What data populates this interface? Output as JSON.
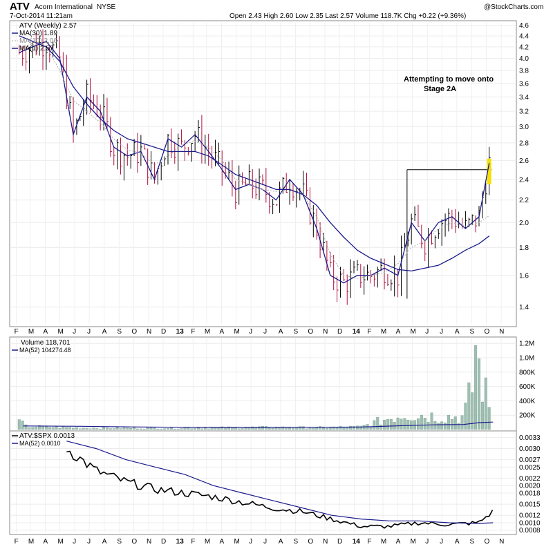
{
  "header": {
    "symbol": "ATV",
    "company": "Acorn International",
    "exchange": "NYSE",
    "datetime": "7-Oct-2014 11:21am",
    "brand": "@StockCharts.com",
    "quote_text": "Open 2.43   High 2.60   Low 2.35   Last 2.57   Volume 118.7K   Chg +0.22 (+9.36%)"
  },
  "price_panel": {
    "legend": [
      "ATV (Weekly) 2.57",
      "MA(30) 1.89",
      "MA(10) 2.06",
      "MA(1) 2.57"
    ],
    "y_ticks": [
      "4.6",
      "4.4",
      "4.2",
      "4.0",
      "3.8",
      "3.6",
      "3.4",
      "3.2",
      "3.0",
      "2.8",
      "2.6",
      "2.4",
      "2.2",
      "2.0",
      "1.8",
      "1.6",
      "1.4"
    ],
    "annotation_line1": "Attempting to move onto",
    "annotation_line2": "Stage 2A"
  },
  "volume_panel": {
    "legend": [
      "Volume 118,701",
      "MA(52) 104274.48"
    ],
    "y_ticks": [
      "1.2M",
      "1.0M",
      "800K",
      "600K",
      "400K",
      "200K"
    ]
  },
  "ratio_panel": {
    "legend": [
      "ATV:$SPX 0.0013",
      "MA(52) 0.0010"
    ],
    "y_ticks": [
      "0.0033",
      "0.0030",
      "0.0027",
      "0.0025",
      "0.0022",
      "0.0020",
      "0.0018",
      "0.0015",
      "0.0012",
      "0.0010",
      "0.0008"
    ]
  },
  "x_axis_labels": [
    "F",
    "M",
    "A",
    "M",
    "J",
    "J",
    "A",
    "S",
    "O",
    "N",
    "D",
    "13",
    "F",
    "M",
    "A",
    "M",
    "J",
    "J",
    "A",
    "S",
    "O",
    "N",
    "D",
    "14",
    "F",
    "M",
    "A",
    "M",
    "J",
    "J",
    "A",
    "S",
    "O",
    "N"
  ],
  "colors": {
    "ma_main": "#1a1a8c",
    "ma10": "#aaaaaa",
    "up_bar": "#000000",
    "down_bar": "#b0103c",
    "volume_bar": "#9fbfb3",
    "highlight": "#f5e000"
  },
  "chart_data": [
    {
      "type": "line",
      "title": "ATV (Weekly)",
      "y_scale": "log",
      "ylim": [
        1.3,
        4.6
      ],
      "x": [
        "2012-02-07",
        "2012-03-06",
        "2012-04-03",
        "2012-05-01",
        "2012-05-29",
        "2012-06-26",
        "2012-07-24",
        "2012-08-21",
        "2012-09-18",
        "2012-10-16",
        "2012-11-13",
        "2012-12-11",
        "2013-01-08",
        "2013-02-05",
        "2013-03-05",
        "2013-04-02",
        "2013-04-30",
        "2013-05-28",
        "2013-06-25",
        "2013-07-23",
        "2013-08-20",
        "2013-09-17",
        "2013-10-15",
        "2013-11-12",
        "2013-12-10",
        "2014-01-07",
        "2014-02-04",
        "2014-03-04",
        "2014-04-01",
        "2014-04-29",
        "2014-05-27",
        "2014-06-24",
        "2014-07-22",
        "2014-08-19",
        "2014-09-16",
        "2014-10-07"
      ],
      "series": [
        {
          "name": "ATV (Weekly)",
          "values": [
            4.1,
            4.2,
            4.3,
            4.0,
            2.9,
            3.4,
            3.2,
            2.75,
            2.65,
            2.7,
            2.4,
            2.85,
            2.75,
            2.9,
            2.7,
            2.5,
            2.3,
            2.35,
            2.3,
            2.2,
            2.4,
            2.25,
            1.95,
            1.6,
            1.55,
            1.6,
            1.6,
            1.65,
            1.6,
            2.0,
            1.85,
            2.0,
            2.05,
            1.95,
            2.05,
            2.57
          ]
        },
        {
          "name": "MA(30)",
          "values": [
            4.4,
            4.3,
            4.2,
            3.95,
            3.55,
            3.3,
            3.1,
            2.95,
            2.85,
            2.8,
            2.75,
            2.7,
            2.7,
            2.7,
            2.65,
            2.55,
            2.45,
            2.4,
            2.35,
            2.3,
            2.3,
            2.25,
            2.15,
            2.0,
            1.88,
            1.78,
            1.72,
            1.68,
            1.64,
            1.63,
            1.65,
            1.67,
            1.72,
            1.78,
            1.83,
            1.89
          ]
        },
        {
          "name": "MA(10)",
          "values": [
            4.2,
            4.25,
            4.2,
            3.8,
            3.35,
            3.2,
            3.05,
            2.85,
            2.72,
            2.68,
            2.55,
            2.65,
            2.78,
            2.82,
            2.75,
            2.6,
            2.4,
            2.35,
            2.3,
            2.28,
            2.3,
            2.25,
            2.05,
            1.75,
            1.6,
            1.58,
            1.6,
            1.62,
            1.68,
            1.8,
            1.85,
            1.95,
            2.0,
            1.97,
            2.0,
            2.06
          ]
        }
      ],
      "annotations": [
        "Attempting to move onto",
        "Stage 2A"
      ]
    },
    {
      "type": "bar",
      "title": "Volume",
      "ylim": [
        0,
        1200000
      ],
      "x": [
        "2012-02",
        "2012-06",
        "2012-10",
        "2013-02",
        "2013-06",
        "2013-10",
        "2014-01",
        "2014-04",
        "2014-06",
        "2014-08",
        "2014-09",
        "2014-10"
      ],
      "series": [
        {
          "name": "Volume",
          "values": [
            60000,
            30000,
            25000,
            30000,
            40000,
            35000,
            50000,
            300000,
            250000,
            230000,
            1170000,
            118701
          ]
        },
        {
          "name": "MA(52)",
          "values": [
            50000,
            45000,
            35000,
            30000,
            30000,
            32000,
            35000,
            55000,
            65000,
            70000,
            95000,
            104274
          ]
        }
      ]
    },
    {
      "type": "line",
      "title": "ATV:$SPX",
      "ylim": [
        0.0008,
        0.0033
      ],
      "x": [
        "2012-05",
        "2012-07",
        "2012-09",
        "2012-11",
        "2013-01",
        "2013-03",
        "2013-05",
        "2013-07",
        "2013-09",
        "2013-11",
        "2014-01",
        "2014-03",
        "2014-05",
        "2014-07",
        "2014-09",
        "2014-10"
      ],
      "series": [
        {
          "name": "ATV:$SPX",
          "values": [
            0.003,
            0.0024,
            0.0021,
            0.0019,
            0.0018,
            0.0017,
            0.00155,
            0.0014,
            0.0013,
            0.0011,
            0.0009,
            0.0009,
            0.001,
            0.00095,
            0.001,
            0.0013
          ]
        },
        {
          "name": "MA(52)",
          "values": [
            0.0032,
            0.003,
            0.0027,
            0.0025,
            0.0023,
            0.002,
            0.0018,
            0.0016,
            0.0014,
            0.0012,
            0.0011,
            0.00105,
            0.00105,
            0.001,
            0.00098,
            0.001
          ]
        }
      ]
    }
  ]
}
